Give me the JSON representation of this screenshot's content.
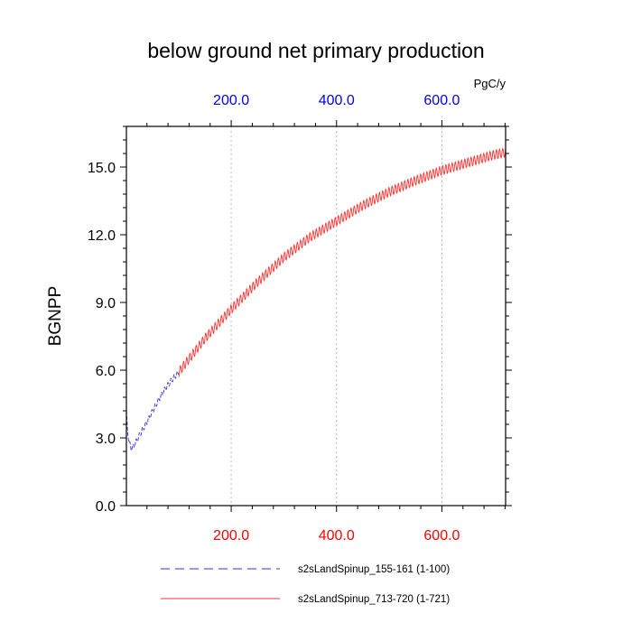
{
  "chart_data": {
    "type": "line",
    "title": "below ground net primary production",
    "ylabel": "BGNPP",
    "units": "PgC/y",
    "xlim": [
      1,
      721
    ],
    "ylim": [
      0,
      16.8
    ],
    "grid": "vertical dotted at x ticks",
    "x_ticks": [
      200,
      400,
      600
    ],
    "x_tick_labels_bottom": [
      "200.0",
      "400.0",
      "600.0"
    ],
    "x_tick_labels_top": [
      "200.0",
      "400.0",
      "600.0"
    ],
    "y_ticks": [
      0,
      3,
      6,
      9,
      12,
      15
    ],
    "y_tick_labels": [
      "0.0",
      "3.0",
      "6.0",
      "9.0",
      "12.0",
      "15.0"
    ],
    "legend_position": "bottom",
    "series": [
      {
        "name": "s2sLandSpinup_155-161 (1-100)",
        "color": "#3b2fd0",
        "style": "dashed",
        "x_range": [
          1,
          100
        ],
        "x": [
          1,
          3,
          6,
          10,
          14,
          20,
          30,
          40,
          50,
          60,
          70,
          80,
          90,
          100
        ],
        "values": [
          4.1,
          3.4,
          2.8,
          2.55,
          2.6,
          2.85,
          3.3,
          3.7,
          4.15,
          4.6,
          5.0,
          5.35,
          5.65,
          5.9
        ],
        "seasonal_amplitude": 0.12
      },
      {
        "name": "s2sLandSpinup_713-720 (1-721)",
        "color": "#ff3333",
        "style": "solid",
        "x_range": [
          100,
          721
        ],
        "x": [
          100,
          150,
          200,
          250,
          300,
          350,
          400,
          450,
          500,
          550,
          600,
          650,
          700,
          721
        ],
        "values": [
          5.9,
          7.4,
          8.7,
          9.9,
          11.0,
          11.9,
          12.6,
          13.3,
          13.9,
          14.4,
          14.85,
          15.2,
          15.55,
          15.65
        ],
        "seasonal_amplitude": 0.2
      }
    ]
  }
}
